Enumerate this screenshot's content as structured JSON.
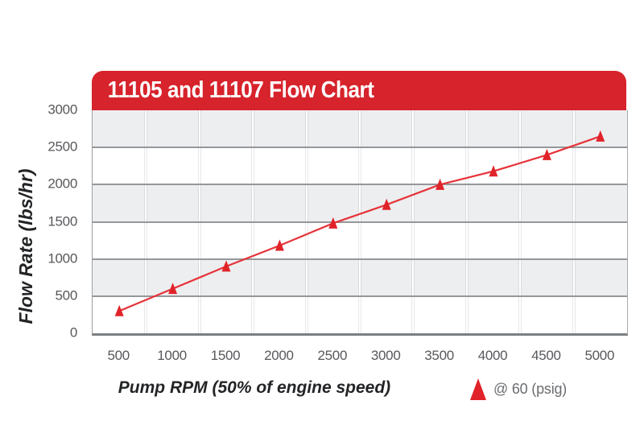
{
  "header": {
    "title": "11105 and 11107 Flow Chart",
    "background_color": "#d7232b",
    "text_color": "#ffffff"
  },
  "chart_data": {
    "type": "line",
    "title": "11105 and 11107 Flow Chart",
    "xlabel": "Pump RPM (50% of engine speed)",
    "ylabel": "Flow Rate (lbs/hr)",
    "categories": [
      500,
      1000,
      1500,
      2000,
      2500,
      3000,
      3500,
      4000,
      4500,
      5000
    ],
    "x_tick_labels": [
      "500",
      "1000",
      "1500",
      "2000",
      "2500",
      "3000",
      "3500",
      "4000",
      "4500",
      "5000"
    ],
    "y_tick_labels": [
      "3000",
      "2500",
      "2000",
      "1500",
      "1000",
      "500",
      "0"
    ],
    "ylim": [
      0,
      3000
    ],
    "y_tick_step": 500,
    "series": [
      {
        "name": "@ 60 (psig)",
        "marker": "triangle",
        "marker_color": "#e02329",
        "line_color": "#e63339",
        "values": [
          300,
          600,
          900,
          1180,
          1480,
          1730,
          2000,
          2180,
          2400,
          2650
        ]
      }
    ],
    "grid": "horizontal-major",
    "band_colors": [
      "#edeef0",
      "#ffffff"
    ],
    "gridline_color": "#95979a",
    "legend_position": "bottom-right"
  },
  "legend": {
    "label": "@ 60 (psig)",
    "marker": "triangle-icon",
    "marker_color": "#e02329"
  }
}
